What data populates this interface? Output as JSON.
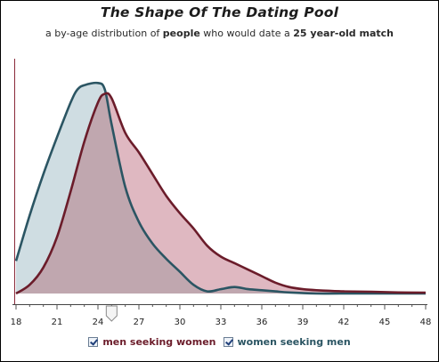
{
  "title": "The Shape Of The Dating Pool",
  "subtitle_parts": [
    "a by-age distribution of ",
    "people",
    " who would date a ",
    "25 year-old match"
  ],
  "legend": {
    "men_label": "men seeking women",
    "women_label": "women seeking men"
  },
  "colors": {
    "men_line": "#6b1c2a",
    "men_fill": "#dfb8c1",
    "women_line": "#2b5563",
    "women_fill": "#cfdde2",
    "overlap_fill": "#c0a7af",
    "axis": "#8a2a3a"
  },
  "slider": {
    "value": 25
  },
  "chart_data": {
    "type": "area",
    "title": "The Shape Of The Dating Pool",
    "subtitle": "a by-age distribution of people who would date a 25 year-old match",
    "xlabel": "",
    "ylabel": "",
    "xlim": [
      18,
      48
    ],
    "ylim": [
      0,
      1
    ],
    "x_ticks": [
      18,
      21,
      24,
      27,
      30,
      33,
      36,
      39,
      42,
      45,
      48
    ],
    "legend_position": "bottom",
    "series": [
      {
        "name": "women seeking men",
        "x": [
          18,
          19,
          20,
          21,
          22,
          22.5,
          23,
          24,
          24.5,
          25,
          26,
          27,
          28,
          29,
          30,
          31,
          32,
          33,
          34,
          35,
          36,
          37,
          38,
          40,
          42,
          48
        ],
        "y": [
          0.15,
          0.36,
          0.55,
          0.72,
          0.88,
          0.94,
          0.96,
          0.97,
          0.94,
          0.78,
          0.49,
          0.33,
          0.23,
          0.16,
          0.1,
          0.04,
          0.01,
          0.02,
          0.03,
          0.02,
          0.015,
          0.01,
          0.005,
          0.0,
          0.0,
          0.0
        ]
      },
      {
        "name": "men seeking women",
        "x": [
          18,
          19,
          20,
          21,
          22,
          23,
          24,
          24.5,
          25,
          26,
          27,
          28,
          29,
          30,
          31,
          32,
          33,
          34,
          35,
          36,
          37,
          38,
          39,
          40,
          42,
          44,
          46,
          48
        ],
        "y": [
          0.0,
          0.04,
          0.12,
          0.26,
          0.47,
          0.7,
          0.88,
          0.92,
          0.9,
          0.74,
          0.65,
          0.55,
          0.45,
          0.37,
          0.3,
          0.22,
          0.17,
          0.14,
          0.11,
          0.08,
          0.05,
          0.03,
          0.02,
          0.015,
          0.01,
          0.008,
          0.005,
          0.004
        ]
      }
    ]
  }
}
